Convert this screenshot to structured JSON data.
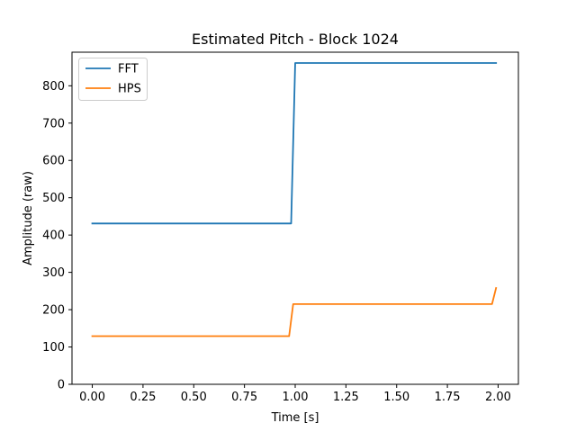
{
  "chart_data": {
    "type": "line",
    "title": "Estimated Pitch - Block 1024",
    "xlabel": "Time [s]",
    "ylabel": "Amplitude (raw)",
    "xlim": [
      -0.1,
      2.1
    ],
    "ylim": [
      0,
      890
    ],
    "xticks": [
      0.0,
      0.25,
      0.5,
      0.75,
      1.0,
      1.25,
      1.5,
      1.75,
      2.0
    ],
    "xtick_labels": [
      "0.00",
      "0.25",
      "0.50",
      "0.75",
      "1.00",
      "1.25",
      "1.50",
      "1.75",
      "2.00"
    ],
    "yticks": [
      0,
      100,
      200,
      300,
      400,
      500,
      600,
      700,
      800
    ],
    "ytick_labels": [
      "0",
      "100",
      "200",
      "300",
      "400",
      "500",
      "600",
      "700",
      "800"
    ],
    "grid": false,
    "legend_position": "upper-left",
    "series": [
      {
        "name": "FFT",
        "color": "#1f77b4",
        "x": [
          0.0,
          0.98,
          1.0,
          1.99
        ],
        "y": [
          431,
          431,
          861,
          861
        ]
      },
      {
        "name": "HPS",
        "color": "#ff7f0e",
        "x": [
          0.0,
          0.97,
          0.99,
          1.97,
          1.99
        ],
        "y": [
          129,
          129,
          215,
          215,
          258
        ]
      }
    ]
  }
}
